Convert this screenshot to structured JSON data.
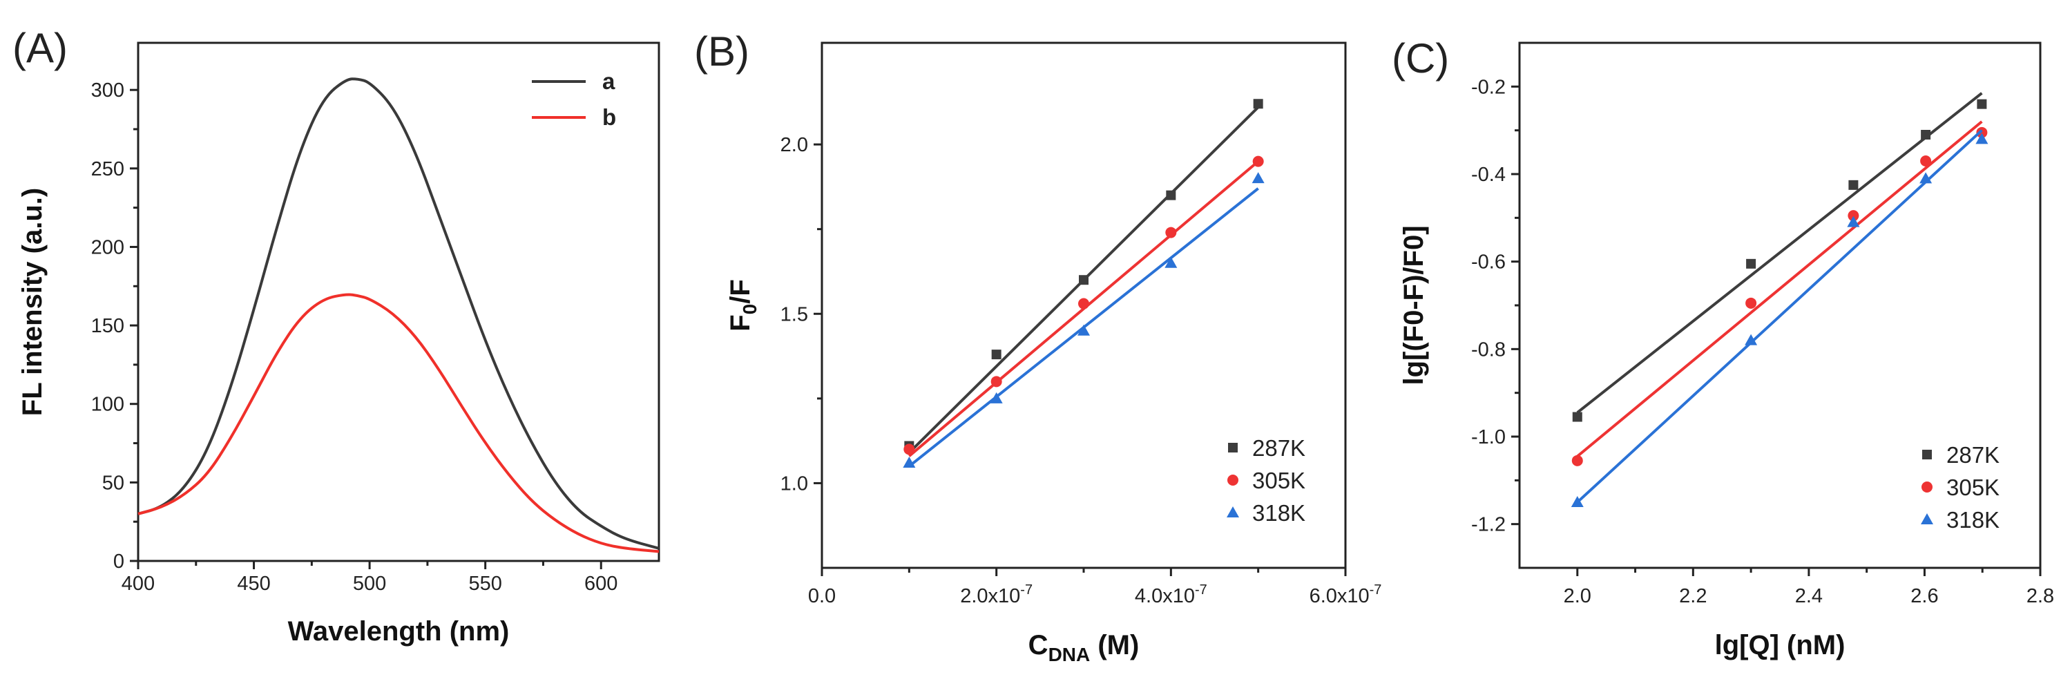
{
  "chart_data": [
    {
      "id": "A",
      "panel_label": "(A)",
      "type": "line",
      "xlabel": "Wavelength (nm)",
      "ylabel": "FL intensity (a.u.)",
      "xlim": [
        400,
        625
      ],
      "ylim": [
        0,
        330
      ],
      "xticks": [
        400,
        450,
        500,
        550,
        600
      ],
      "yticks": [
        0,
        50,
        100,
        150,
        200,
        250,
        300
      ],
      "legend_position": "top-right",
      "series": [
        {
          "name": "a",
          "color": "#3a3a3a",
          "x": [
            400,
            410,
            420,
            430,
            440,
            450,
            460,
            470,
            480,
            490,
            495,
            500,
            510,
            520,
            530,
            540,
            550,
            560,
            570,
            580,
            590,
            600,
            610,
            625
          ],
          "y": [
            30,
            34,
            46,
            70,
            110,
            160,
            213,
            262,
            295,
            307,
            307,
            305,
            290,
            260,
            220,
            180,
            140,
            105,
            75,
            50,
            32,
            22,
            14,
            8
          ]
        },
        {
          "name": "b",
          "color": "#f0302a",
          "x": [
            400,
            410,
            420,
            430,
            440,
            450,
            460,
            470,
            480,
            490,
            495,
            500,
            510,
            520,
            530,
            540,
            550,
            560,
            570,
            580,
            590,
            600,
            610,
            625
          ],
          "y": [
            30,
            34,
            42,
            55,
            78,
            105,
            133,
            155,
            167,
            170,
            169,
            167,
            158,
            143,
            122,
            98,
            75,
            55,
            38,
            26,
            17,
            11,
            8,
            6
          ]
        }
      ]
    },
    {
      "id": "B",
      "panel_label": "(B)",
      "type": "scatter",
      "xlabel": "CDNA (M)",
      "xlabel_main": "C",
      "xlabel_sub": "DNA",
      "xlabel_unit": " (M)",
      "ylabel": "F0/F",
      "ylabel_main": "F",
      "ylabel_sub": "0",
      "ylabel_rest": "/F",
      "xlim": [
        0,
        6e-07
      ],
      "ylim": [
        0.75,
        2.3
      ],
      "xticks": [
        0,
        2e-07,
        4e-07,
        6e-07
      ],
      "xtick_labels": [
        {
          "mant": "0.0",
          "exp": ""
        },
        {
          "mant": "2.0x10",
          "exp": "-7"
        },
        {
          "mant": "4.0x10",
          "exp": "-7"
        },
        {
          "mant": "6.0x10",
          "exp": "-7"
        }
      ],
      "yticks": [
        1.0,
        1.5,
        2.0
      ],
      "ytick_labels": [
        "1.0",
        "1.5",
        "2.0"
      ],
      "legend_position": "bottom-right",
      "series": [
        {
          "name": "287K",
          "color": "#3d3d3d",
          "marker": "square",
          "x": [
            1e-07,
            2e-07,
            3e-07,
            4e-07,
            5e-07
          ],
          "y": [
            1.11,
            1.38,
            1.6,
            1.85,
            2.12
          ],
          "fit": [
            [
              1e-07,
              1.09
            ],
            [
              5e-07,
              2.11
            ]
          ]
        },
        {
          "name": "305K",
          "color": "#ee3333",
          "marker": "circle",
          "x": [
            1e-07,
            2e-07,
            3e-07,
            4e-07,
            5e-07
          ],
          "y": [
            1.1,
            1.3,
            1.53,
            1.74,
            1.95
          ],
          "fit": [
            [
              1e-07,
              1.08
            ],
            [
              5e-07,
              1.95
            ]
          ]
        },
        {
          "name": "318K",
          "color": "#2a72d6",
          "marker": "triangle",
          "x": [
            1e-07,
            2e-07,
            3e-07,
            4e-07,
            5e-07
          ],
          "y": [
            1.06,
            1.25,
            1.45,
            1.65,
            1.9
          ],
          "fit": [
            [
              1e-07,
              1.05
            ],
            [
              5e-07,
              1.87
            ]
          ]
        }
      ]
    },
    {
      "id": "C",
      "panel_label": "(C)",
      "type": "scatter",
      "xlabel": "lg[Q] (nM)",
      "ylabel": "lg[(F0-F)/F0]",
      "xlim": [
        1.9,
        2.8
      ],
      "ylim": [
        -1.3,
        -0.1
      ],
      "xticks": [
        2.0,
        2.2,
        2.4,
        2.6,
        2.8
      ],
      "xtick_labels": [
        "2.0",
        "2.2",
        "2.4",
        "2.6",
        "2.8"
      ],
      "yticks": [
        -1.2,
        -1.0,
        -0.8,
        -0.6,
        -0.4,
        -0.2
      ],
      "ytick_labels": [
        "-1.2",
        "-1.0",
        "-0.8",
        "-0.6",
        "-0.4",
        "-0.2"
      ],
      "legend_position": "bottom-right",
      "series": [
        {
          "name": "287K",
          "color": "#3d3d3d",
          "marker": "square",
          "x": [
            2.0,
            2.3,
            2.477,
            2.602,
            2.699
          ],
          "y": [
            -0.955,
            -0.605,
            -0.425,
            -0.31,
            -0.24
          ],
          "fit": [
            [
              2.0,
              -0.945
            ],
            [
              2.699,
              -0.215
            ]
          ]
        },
        {
          "name": "305K",
          "color": "#ee3333",
          "marker": "circle",
          "x": [
            2.0,
            2.3,
            2.477,
            2.602,
            2.699
          ],
          "y": [
            -1.055,
            -0.695,
            -0.495,
            -0.37,
            -0.305
          ],
          "fit": [
            [
              2.0,
              -1.045
            ],
            [
              2.699,
              -0.28
            ]
          ]
        },
        {
          "name": "318K",
          "color": "#2a72d6",
          "marker": "triangle",
          "x": [
            2.0,
            2.3,
            2.477,
            2.602,
            2.699
          ],
          "y": [
            -1.15,
            -0.78,
            -0.51,
            -0.41,
            -0.32
          ],
          "fit": [
            [
              2.0,
              -1.15
            ],
            [
              2.699,
              -0.3
            ]
          ]
        }
      ]
    }
  ]
}
